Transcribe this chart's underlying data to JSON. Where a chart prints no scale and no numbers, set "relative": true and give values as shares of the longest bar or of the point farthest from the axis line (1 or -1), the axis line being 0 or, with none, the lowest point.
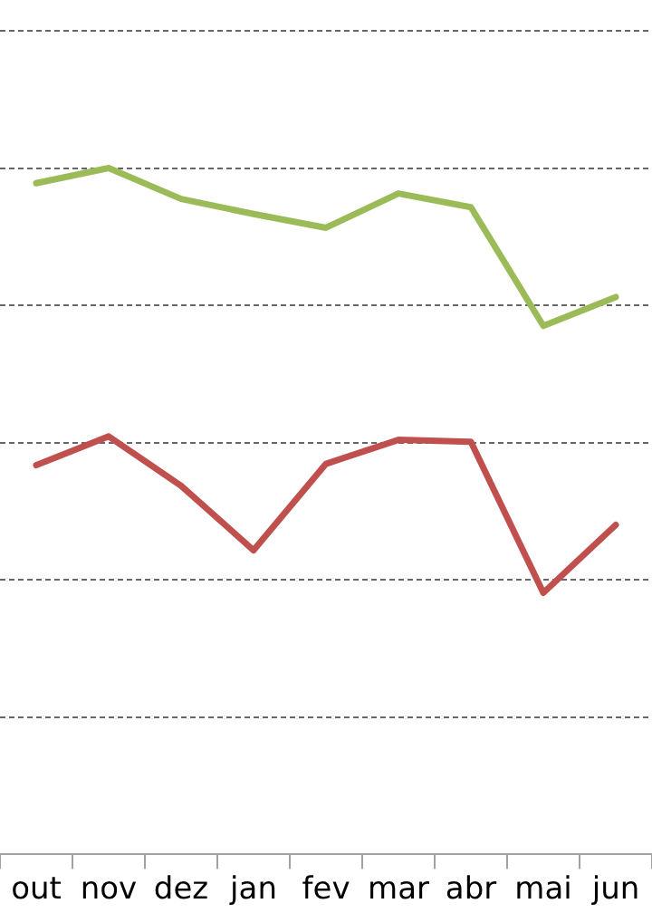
{
  "chart_data": {
    "type": "line",
    "relative": true,
    "categories": [
      "out",
      "nov",
      "dez",
      "jan",
      "fev",
      "mar",
      "abr",
      "mai",
      "jun"
    ],
    "series": [
      {
        "color": "#9bbb59",
        "values": [
          0.978,
          1,
          0.955,
          0.933,
          0.913,
          0.963,
          0.943,
          0.77,
          0.812
        ]
      },
      {
        "color": "#c0504d",
        "values": [
          0.567,
          0.609,
          0.537,
          0.443,
          0.569,
          0.604,
          0.601,
          0.381,
          0.48
        ]
      }
    ],
    "grid": "y",
    "legend": false,
    "marker": "none",
    "line_style": "solid"
  }
}
